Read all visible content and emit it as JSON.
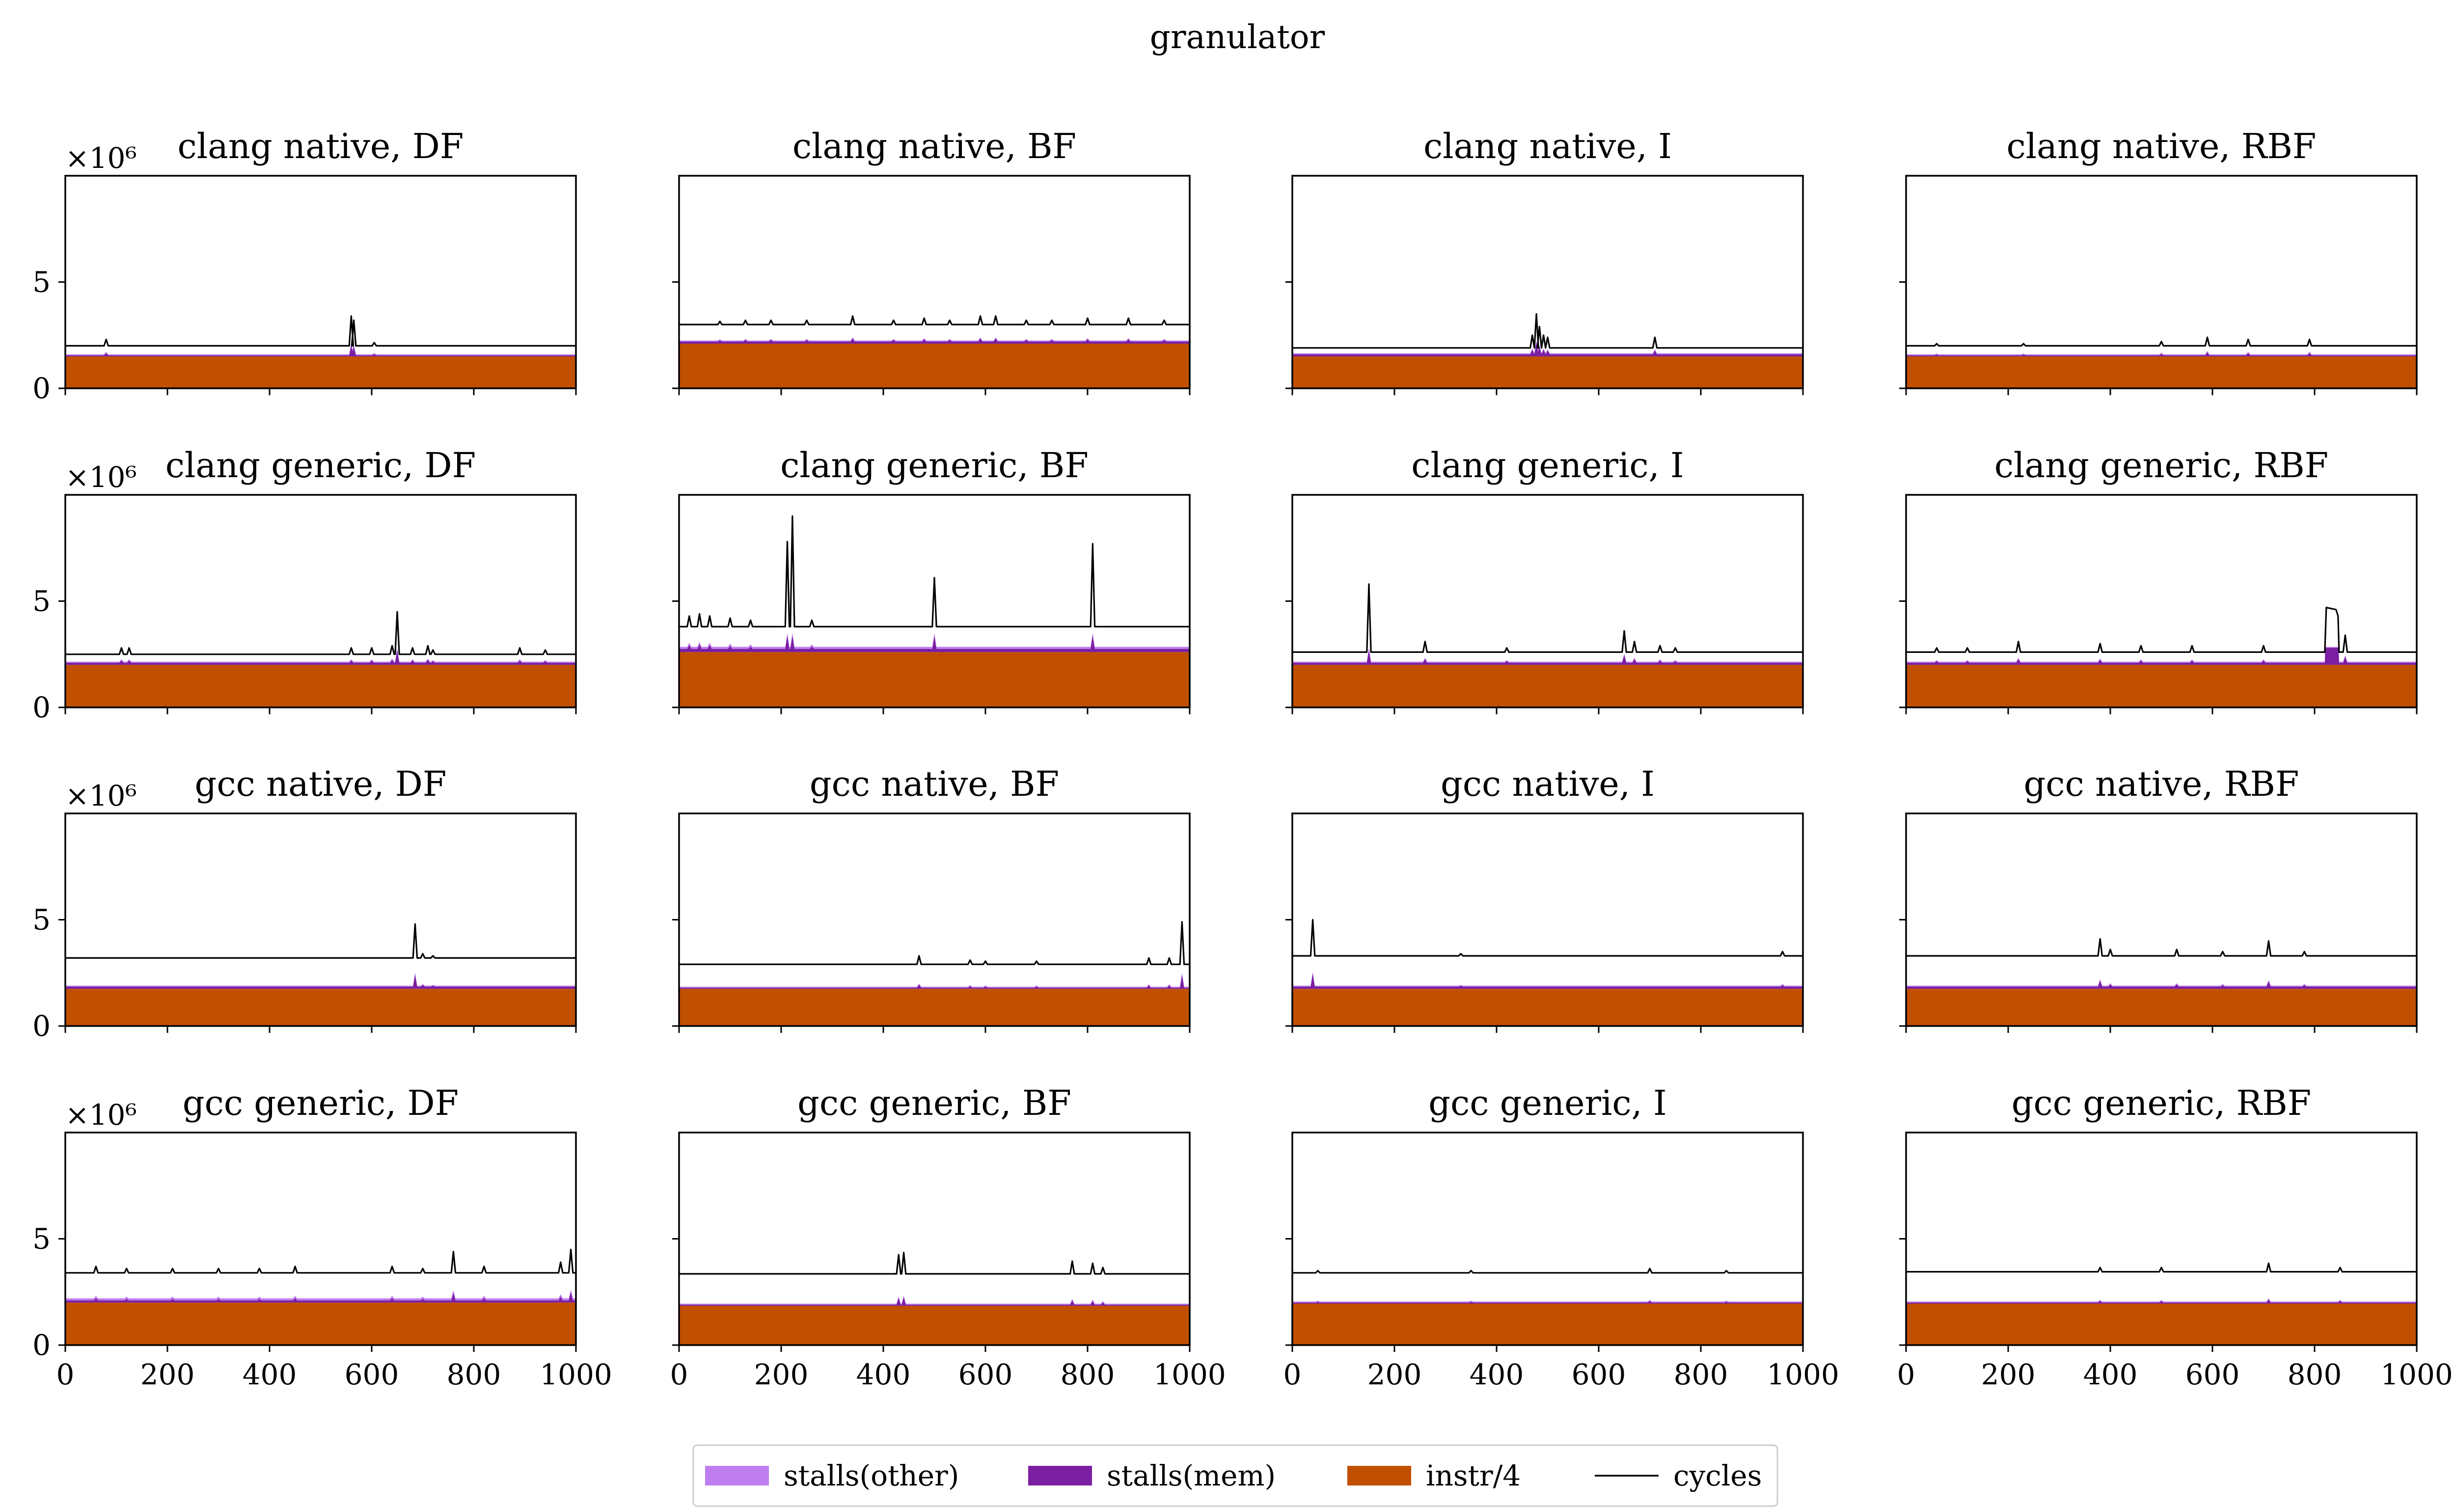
{
  "figure": {
    "title": "granulator",
    "scale_label": "×10⁶"
  },
  "legend": {
    "items": [
      {
        "label": "stalls(other)",
        "color": "#bf7eef",
        "kind": "patch"
      },
      {
        "label": "stalls(mem)",
        "color": "#7b1fa2",
        "kind": "patch"
      },
      {
        "label": "instr/4",
        "color": "#c14f00",
        "kind": "patch"
      },
      {
        "label": "cycles",
        "color": "#000000",
        "kind": "line"
      }
    ]
  },
  "colors": {
    "stalls_other": "#bf7eef",
    "stalls_mem": "#7b1fa2",
    "instr": "#c14f00",
    "cycles": "#000000"
  },
  "chart_data": {
    "type": "area",
    "xlim": [
      0,
      1000
    ],
    "ylim": [
      0,
      10
    ],
    "y_unit_multiplier": 1000000,
    "x_ticks": [
      0,
      200,
      400,
      600,
      800,
      1000
    ],
    "y_ticks": [
      0,
      5
    ],
    "x_tick_labels": [
      "0",
      "200",
      "400",
      "600",
      "800",
      "1000"
    ],
    "y_tick_labels": [
      "0",
      "5"
    ],
    "panels": [
      {
        "title": "clang native, DF",
        "instr": 1.5,
        "mem": 0.05,
        "other": 0.05,
        "cycles": 2.0,
        "spikes": [
          [
            80,
            0.3
          ],
          [
            560,
            1.4
          ],
          [
            565,
            1.2
          ],
          [
            605,
            0.15
          ]
        ]
      },
      {
        "title": "clang native, BF",
        "instr": 2.1,
        "mem": 0.1,
        "other": 0.05,
        "cycles": 3.0,
        "spikes": [
          [
            80,
            0.15
          ],
          [
            130,
            0.2
          ],
          [
            180,
            0.2
          ],
          [
            250,
            0.2
          ],
          [
            340,
            0.4
          ],
          [
            420,
            0.2
          ],
          [
            480,
            0.3
          ],
          [
            530,
            0.2
          ],
          [
            590,
            0.4
          ],
          [
            620,
            0.4
          ],
          [
            680,
            0.2
          ],
          [
            730,
            0.2
          ],
          [
            800,
            0.3
          ],
          [
            880,
            0.3
          ],
          [
            950,
            0.2
          ]
        ]
      },
      {
        "title": "clang native, I",
        "instr": 1.5,
        "mem": 0.1,
        "other": 0.05,
        "cycles": 1.9,
        "spikes": [
          [
            470,
            0.6
          ],
          [
            478,
            1.6
          ],
          [
            484,
            1.0
          ],
          [
            492,
            0.6
          ],
          [
            500,
            0.5
          ],
          [
            710,
            0.5
          ]
        ]
      },
      {
        "title": "clang native, RBF",
        "instr": 1.5,
        "mem": 0.05,
        "other": 0.05,
        "cycles": 2.0,
        "spikes": [
          [
            60,
            0.1
          ],
          [
            230,
            0.1
          ],
          [
            500,
            0.2
          ],
          [
            590,
            0.4
          ],
          [
            670,
            0.3
          ],
          [
            790,
            0.3
          ]
        ]
      },
      {
        "title": "clang generic, DF",
        "instr": 2.0,
        "mem": 0.1,
        "other": 0.05,
        "cycles": 2.5,
        "spikes": [
          [
            110,
            0.3
          ],
          [
            125,
            0.3
          ],
          [
            560,
            0.3
          ],
          [
            600,
            0.3
          ],
          [
            640,
            0.4
          ],
          [
            650,
            2.0
          ],
          [
            680,
            0.3
          ],
          [
            710,
            0.4
          ],
          [
            720,
            0.2
          ],
          [
            890,
            0.3
          ],
          [
            940,
            0.2
          ]
        ]
      },
      {
        "title": "clang generic, BF",
        "instr": 2.6,
        "mem": 0.15,
        "other": 0.1,
        "cycles": 3.8,
        "spikes": [
          [
            20,
            0.5
          ],
          [
            40,
            0.6
          ],
          [
            60,
            0.5
          ],
          [
            100,
            0.4
          ],
          [
            140,
            0.3
          ],
          [
            212,
            4.0
          ],
          [
            222,
            5.2
          ],
          [
            260,
            0.3
          ],
          [
            500,
            2.3
          ],
          [
            810,
            3.9
          ]
        ]
      },
      {
        "title": "clang generic, I",
        "instr": 2.0,
        "mem": 0.1,
        "other": 0.05,
        "cycles": 2.6,
        "spikes": [
          [
            150,
            3.2
          ],
          [
            260,
            0.5
          ],
          [
            420,
            0.2
          ],
          [
            650,
            1.0
          ],
          [
            670,
            0.5
          ],
          [
            720,
            0.3
          ],
          [
            750,
            0.2
          ]
        ]
      },
      {
        "title": "clang generic, RBF",
        "instr": 2.0,
        "mem": 0.1,
        "other": 0.05,
        "cycles": 2.6,
        "spikes": [
          [
            60,
            0.2
          ],
          [
            120,
            0.2
          ],
          [
            220,
            0.5
          ],
          [
            380,
            0.4
          ],
          [
            460,
            0.3
          ],
          [
            560,
            0.3
          ],
          [
            700,
            0.3
          ],
          [
            860,
            0.8
          ]
        ],
        "plateau": {
          "start": 820,
          "end": 848,
          "cycles": 4.7,
          "mem": 0.7
        }
      },
      {
        "title": "gcc native, DF",
        "instr": 1.75,
        "mem": 0.1,
        "other": 0.05,
        "cycles": 3.2,
        "spikes": [
          [
            685,
            1.6
          ],
          [
            700,
            0.2
          ],
          [
            720,
            0.1
          ]
        ]
      },
      {
        "title": "gcc native, BF",
        "instr": 1.75,
        "mem": 0.05,
        "other": 0.05,
        "cycles": 2.9,
        "spikes": [
          [
            470,
            0.4
          ],
          [
            570,
            0.2
          ],
          [
            600,
            0.15
          ],
          [
            700,
            0.15
          ],
          [
            920,
            0.3
          ],
          [
            960,
            0.3
          ],
          [
            985,
            2.0
          ]
        ]
      },
      {
        "title": "gcc native, I",
        "instr": 1.75,
        "mem": 0.1,
        "other": 0.05,
        "cycles": 3.3,
        "spikes": [
          [
            40,
            1.7
          ],
          [
            330,
            0.1
          ],
          [
            960,
            0.2
          ]
        ]
      },
      {
        "title": "gcc native, RBF",
        "instr": 1.75,
        "mem": 0.1,
        "other": 0.05,
        "cycles": 3.3,
        "spikes": [
          [
            380,
            0.8
          ],
          [
            400,
            0.3
          ],
          [
            530,
            0.3
          ],
          [
            620,
            0.2
          ],
          [
            710,
            0.7
          ],
          [
            780,
            0.2
          ]
        ]
      },
      {
        "title": "gcc generic, DF",
        "instr": 2.0,
        "mem": 0.1,
        "other": 0.1,
        "cycles": 3.4,
        "spikes": [
          [
            60,
            0.3
          ],
          [
            120,
            0.2
          ],
          [
            210,
            0.2
          ],
          [
            300,
            0.2
          ],
          [
            380,
            0.2
          ],
          [
            450,
            0.3
          ],
          [
            640,
            0.3
          ],
          [
            700,
            0.2
          ],
          [
            760,
            1.0
          ],
          [
            820,
            0.3
          ],
          [
            970,
            0.5
          ],
          [
            990,
            1.1
          ]
        ]
      },
      {
        "title": "gcc generic, BF",
        "instr": 1.85,
        "mem": 0.05,
        "other": 0.05,
        "cycles": 3.35,
        "spikes": [
          [
            430,
            0.9
          ],
          [
            440,
            1.0
          ],
          [
            770,
            0.6
          ],
          [
            810,
            0.5
          ],
          [
            830,
            0.3
          ]
        ]
      },
      {
        "title": "gcc generic, I",
        "instr": 1.95,
        "mem": 0.05,
        "other": 0.05,
        "cycles": 3.4,
        "spikes": [
          [
            50,
            0.1
          ],
          [
            350,
            0.1
          ],
          [
            700,
            0.2
          ],
          [
            850,
            0.1
          ]
        ]
      },
      {
        "title": "gcc generic, RBF",
        "instr": 1.95,
        "mem": 0.05,
        "other": 0.05,
        "cycles": 3.45,
        "spikes": [
          [
            380,
            0.2
          ],
          [
            500,
            0.2
          ],
          [
            710,
            0.4
          ],
          [
            850,
            0.2
          ]
        ]
      }
    ]
  }
}
